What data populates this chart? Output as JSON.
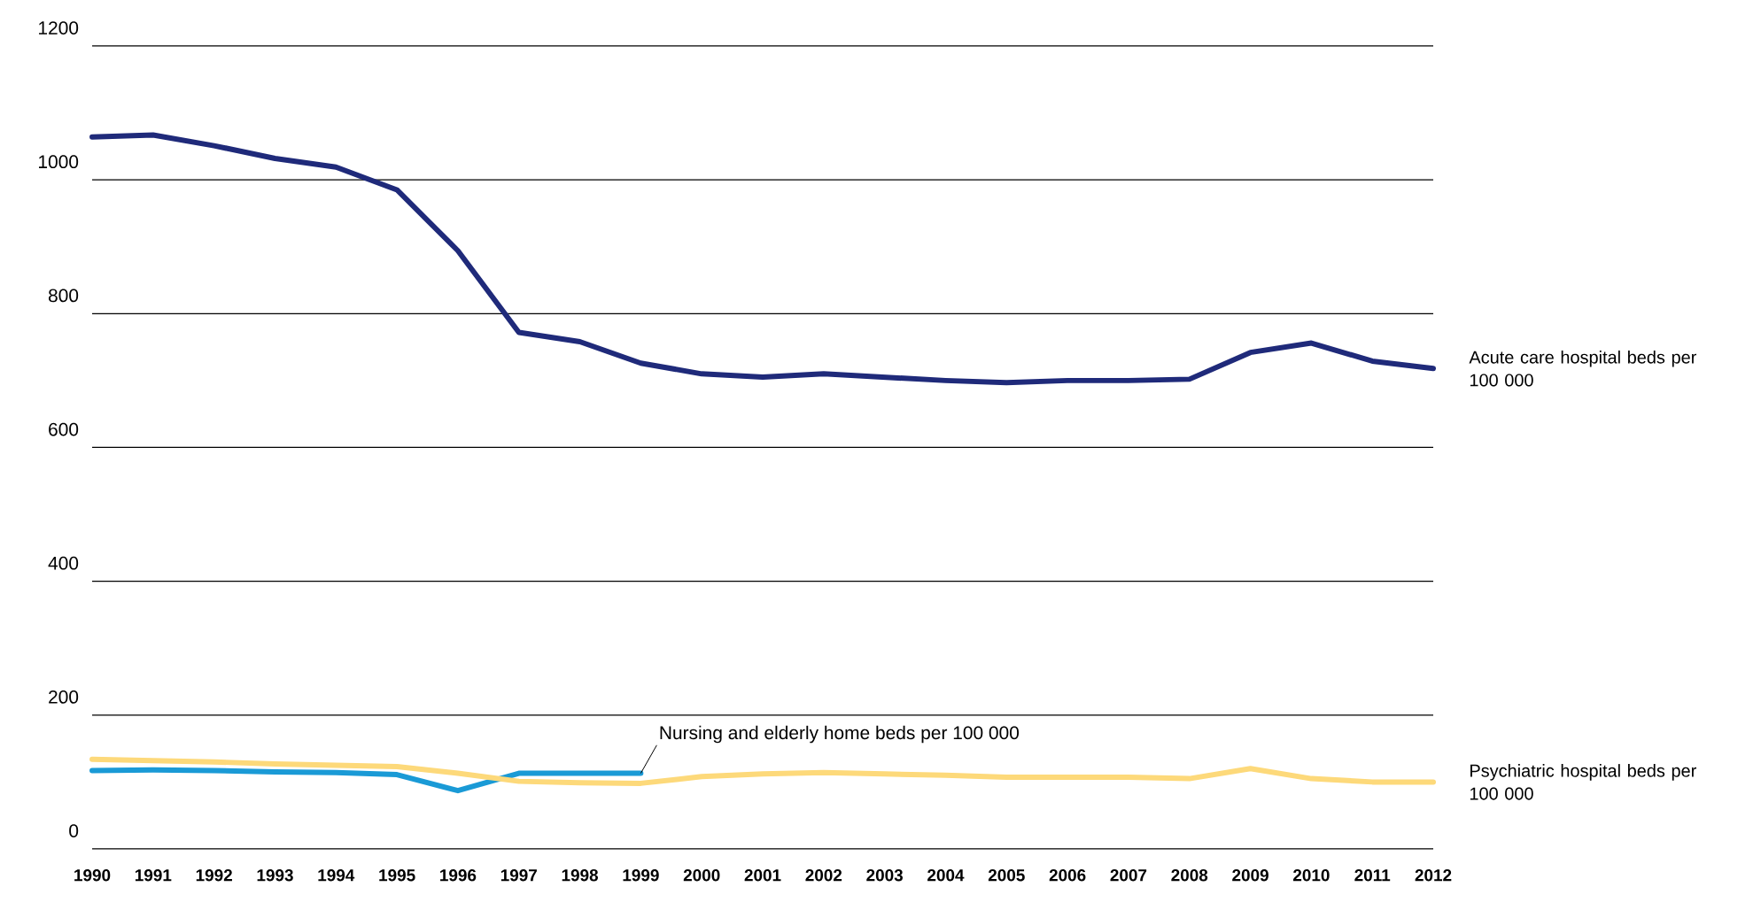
{
  "chart_data": {
    "type": "line",
    "categories": [
      "1990",
      "1991",
      "1992",
      "1993",
      "1994",
      "1995",
      "1996",
      "1997",
      "1998",
      "1999",
      "2000",
      "2001",
      "2002",
      "2003",
      "2004",
      "2005",
      "2006",
      "2007",
      "2008",
      "2009",
      "2010",
      "2011",
      "2012"
    ],
    "series": [
      {
        "name": "Acute care hospital beds per 100 000",
        "color": "#1f2a7a",
        "values": [
          1064,
          1067,
          1051,
          1032,
          1019,
          985,
          894,
          772,
          758,
          726,
          710,
          705,
          710,
          705,
          700,
          697,
          700,
          700,
          702,
          742,
          756,
          729,
          718
        ]
      },
      {
        "name": "Nursing and elderly home beds per 100 000",
        "color": "#1a9ad6",
        "values": [
          117,
          118,
          117,
          115,
          114,
          111,
          87,
          113,
          113,
          113,
          null,
          null,
          null,
          null,
          null,
          null,
          null,
          null,
          null,
          null,
          null,
          null,
          null
        ]
      },
      {
        "name": "Psychiatric hospital beds per 100 000",
        "color": "#fdd97a",
        "values": [
          134,
          132,
          130,
          127,
          125,
          123,
          113,
          101,
          99,
          98,
          108,
          112,
          114,
          112,
          110,
          107,
          107,
          107,
          105,
          120,
          105,
          100,
          100
        ]
      }
    ],
    "ylim": [
      0,
      1200
    ],
    "yticks": [
      0,
      200,
      400,
      600,
      800,
      1000,
      1200
    ],
    "grid": "y",
    "marker": "none",
    "line_style": "solid"
  }
}
